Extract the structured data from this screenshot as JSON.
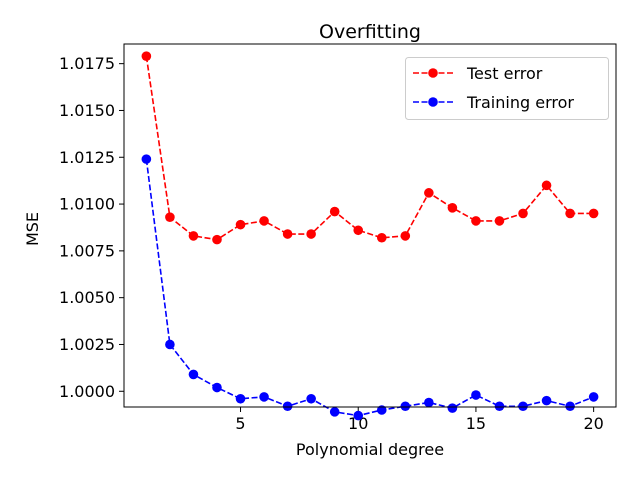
{
  "chart_data": {
    "type": "line",
    "title": "Overfitting",
    "xlabel": "Polynomial degree",
    "ylabel": "MSE",
    "xlim": [
      0.05,
      20.95
    ],
    "ylim": [
      0.99916,
      1.01855
    ],
    "xticks": [
      5,
      10,
      15,
      20
    ],
    "xtick_labels": [
      "5",
      "10",
      "15",
      "20"
    ],
    "yticks": [
      1.0,
      1.0025,
      1.005,
      1.0075,
      1.01,
      1.0125,
      1.015,
      1.0175
    ],
    "ytick_labels": [
      "1.0000",
      "1.0025",
      "1.0050",
      "1.0075",
      "1.0100",
      "1.0125",
      "1.0150",
      "1.0175"
    ],
    "grid": false,
    "legend_position": "top-right",
    "x": [
      1,
      2,
      3,
      4,
      5,
      6,
      7,
      8,
      9,
      10,
      11,
      12,
      13,
      14,
      15,
      16,
      17,
      18,
      19,
      20
    ],
    "series": [
      {
        "name": "Test error",
        "color": "#ff0000",
        "values": [
          1.0179,
          1.0093,
          1.0083,
          1.0081,
          1.0089,
          1.0091,
          1.0084,
          1.0084,
          1.0096,
          1.0086,
          1.0082,
          1.0083,
          1.0106,
          1.0098,
          1.0091,
          1.0091,
          1.0095,
          1.011,
          1.0095,
          1.0095
        ]
      },
      {
        "name": "Training error",
        "color": "#0000ff",
        "values": [
          1.0124,
          1.0025,
          1.0009,
          1.0002,
          0.9996,
          0.9997,
          0.9992,
          0.9996,
          0.9989,
          0.9987,
          0.999,
          0.9992,
          0.9994,
          0.9991,
          0.9998,
          0.9992,
          0.9992,
          0.9995,
          0.9992,
          0.9997
        ]
      }
    ]
  }
}
